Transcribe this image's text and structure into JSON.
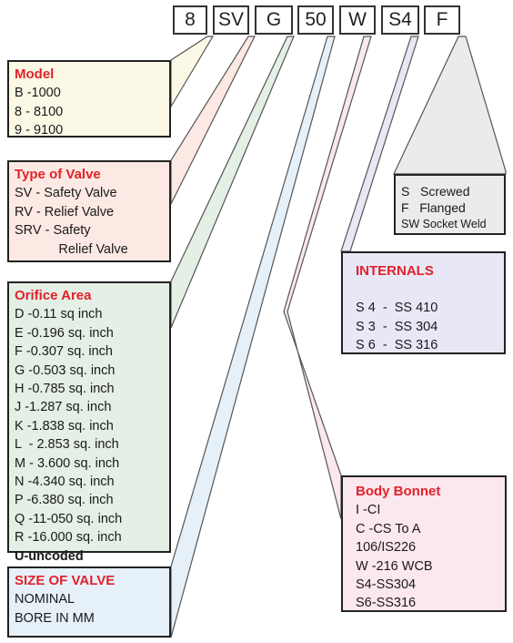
{
  "code": [
    "8",
    "SV",
    "G",
    "50",
    "W",
    "S4",
    "F"
  ],
  "model": {
    "title": "Model",
    "lines": [
      "B -1000",
      "8 - 8100",
      "9 - 9100"
    ]
  },
  "type_of_valve": {
    "title": "Type of Valve",
    "lines": [
      "SV - Safety Valve",
      "RV - Relief Valve",
      "SRV - Safety",
      "            Relief Valve"
    ]
  },
  "orifice_area": {
    "title": "Orifice Area",
    "lines": [
      "D -0.11 sq inch",
      "E -0.196 sq. inch",
      "F -0.307 sq. inch",
      "G -0.503 sq. inch",
      "H -0.785 sq. inch",
      "J -1.287 sq. inch",
      "K -1.838 sq. inch",
      "L  - 2.853 sq. inch",
      "M - 3.600 sq. inch",
      "N -4.340 sq. inch",
      "P -6.380 sq. inch",
      "Q -11-050 sq. inch",
      "R -16.000 sq. inch",
      "U-uncoded"
    ]
  },
  "size_of_valve": {
    "title": "SIZE OF VALVE",
    "lines": [
      "NOMINAL",
      "BORE IN MM"
    ]
  },
  "end_connection": {
    "lines": [
      "S   Screwed",
      "F   Flanged",
      "SW Socket Weld"
    ]
  },
  "internals": {
    "title": "INTERNALS",
    "lines": [
      "S 4  -  SS 410",
      "S 3  -  SS 304",
      "S 6  -  SS 316"
    ]
  },
  "body_bonnet": {
    "title": "Body Bonnet",
    "lines": [
      "I -CI",
      "C -CS To A",
      "106/IS226",
      "W -216 WCB",
      "S4-SS304",
      "S6-SS316"
    ]
  },
  "colors": {
    "title_red": "#e0222b",
    "model_fill": "#fcf8e6",
    "type_fill": "#fde9e3",
    "orifice_fill": "#e4efe5",
    "size_fill": "#e6f0f9",
    "ends_fill": "#ebebe9",
    "internals_fill": "#e8e7f6",
    "body_fill": "#fbe7ee"
  }
}
